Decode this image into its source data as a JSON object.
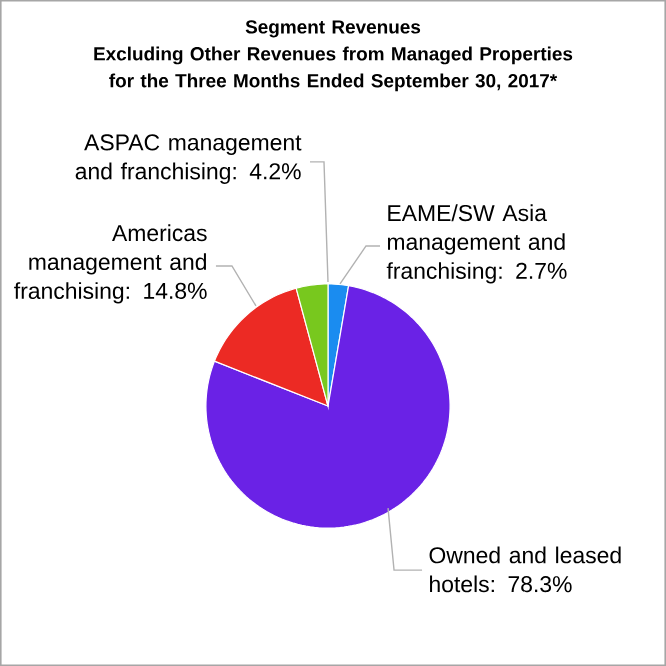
{
  "chart_data": {
    "type": "pie",
    "title": "Segment Revenues\nExcluding Other Revenues from Managed Properties\nfor the Three Months Ended September 30, 2017*",
    "categories": [
      "EAME/SW Asia management and franchising: 2.7%",
      "Owned and leased hotels: 78.3%",
      "Americas management and franchising: 14.8%",
      "ASPAC management and franchising: 4.2%"
    ],
    "values": [
      2.7,
      78.3,
      14.8,
      4.2
    ],
    "colors": [
      "#1a8cf0",
      "#6a22e6",
      "#ec2a24",
      "#78c81e"
    ]
  }
}
